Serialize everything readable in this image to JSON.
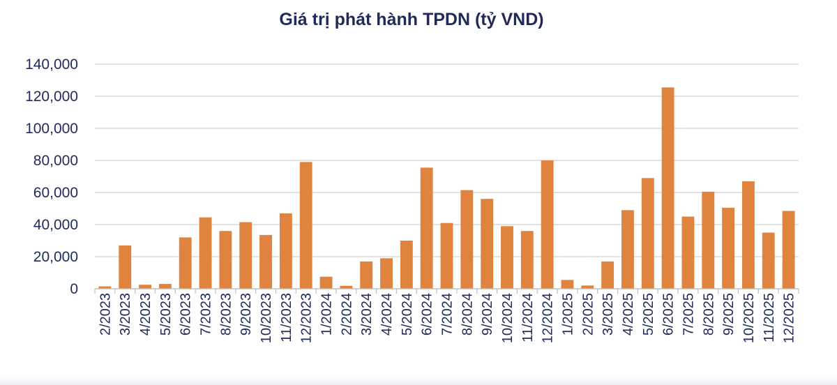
{
  "chart_data": {
    "type": "bar",
    "title": "Giá trị phát hành TPDN (tỷ VND)",
    "xlabel": "",
    "ylabel": "",
    "ylim": [
      0,
      140000
    ],
    "y_ticks": [
      "0",
      "20,000",
      "40,000",
      "60,000",
      "80,000",
      "100,000",
      "120,000",
      "140,000"
    ],
    "y_tick_values": [
      0,
      20000,
      40000,
      60000,
      80000,
      100000,
      120000,
      140000
    ],
    "grid": true,
    "legend": "none",
    "bar_color": "#e0833f",
    "categories": [
      "2/2023",
      "3/2023",
      "4/2023",
      "5/2023",
      "6/2023",
      "7/2023",
      "8/2023",
      "9/2023",
      "10/2023",
      "11/2023",
      "12/2023",
      "1/2024",
      "2/2024",
      "3/2024",
      "4/2024",
      "5/2024",
      "6/2024",
      "7/2024",
      "8/2024",
      "9/2024",
      "10/2024",
      "11/2024",
      "12/2024",
      "1/2025",
      "2/2025",
      "3/2025",
      "4/2025",
      "5/2025",
      "6/2025",
      "7/2025",
      "8/2025",
      "9/2025",
      "10/2025",
      "11/2025",
      "12/2025"
    ],
    "values": [
      1500,
      27000,
      2500,
      3000,
      32000,
      44500,
      36000,
      41500,
      33500,
      47000,
      79000,
      7500,
      1800,
      17000,
      19000,
      30000,
      75500,
      41000,
      61500,
      56000,
      39000,
      36000,
      80000,
      5500,
      2000,
      17000,
      49000,
      69000,
      125500,
      45000,
      60500,
      50500,
      67000,
      35000,
      48500
    ]
  }
}
